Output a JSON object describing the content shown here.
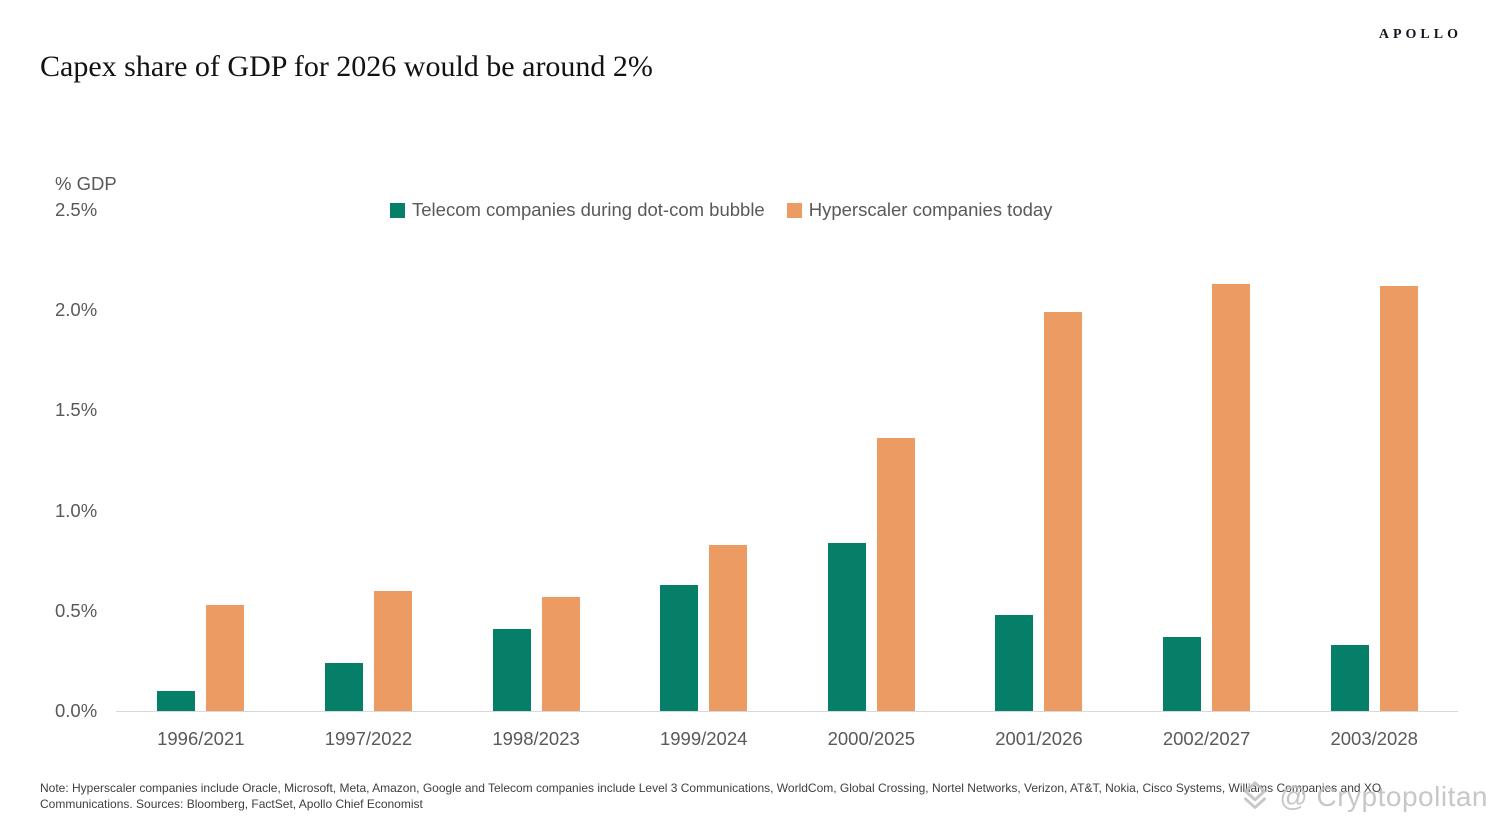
{
  "brand": {
    "logo": "APOLLO"
  },
  "title": "Capex share of GDP for 2026 would be around 2%",
  "note": {
    "line1": "Note: Hyperscaler companies include Oracle, Microsoft, Meta, Amazon, Google and Telecom companies include  Level 3 Communications, WorldCom, Global Crossing, Nortel Networks, Verizon, AT&T, Nokia, Cisco Systems, Williams Companies and XO",
    "line2": "Communications. Sources: Bloomberg, FactSet, Apollo Chief Economist"
  },
  "watermark": {
    "text": "@ Cryptopolitan",
    "icon": "diamond-gem-icon"
  },
  "chart_data": {
    "type": "bar",
    "title": "Capex share of GDP for 2026 would be around 2%",
    "xlabel": "",
    "ylabel": "% GDP",
    "ylim": [
      0,
      2.5
    ],
    "yticks": [
      "0.0%",
      "0.5%",
      "1.0%",
      "1.5%",
      "2.0%",
      "2.5%"
    ],
    "ytick_values": [
      0,
      0.5,
      1.0,
      1.5,
      2.0,
      2.5
    ],
    "grid": false,
    "legend_position": "top",
    "categories": [
      "1996/2021",
      "1997/2022",
      "1998/2023",
      "1999/2024",
      "2000/2025",
      "2001/2026",
      "2002/2027",
      "2003/2028"
    ],
    "series": [
      {
        "key": "telecom",
        "name": "Telecom companies during dot-com bubble",
        "color": "#057f68",
        "values": [
          0.1,
          0.24,
          0.41,
          0.63,
          0.84,
          0.48,
          0.37,
          0.33
        ]
      },
      {
        "key": "hyperscaler",
        "name": "Hyperscaler companies today",
        "color": "#ec9b63",
        "values": [
          0.53,
          0.6,
          0.57,
          0.83,
          1.36,
          1.99,
          2.13,
          2.12
        ]
      }
    ]
  }
}
